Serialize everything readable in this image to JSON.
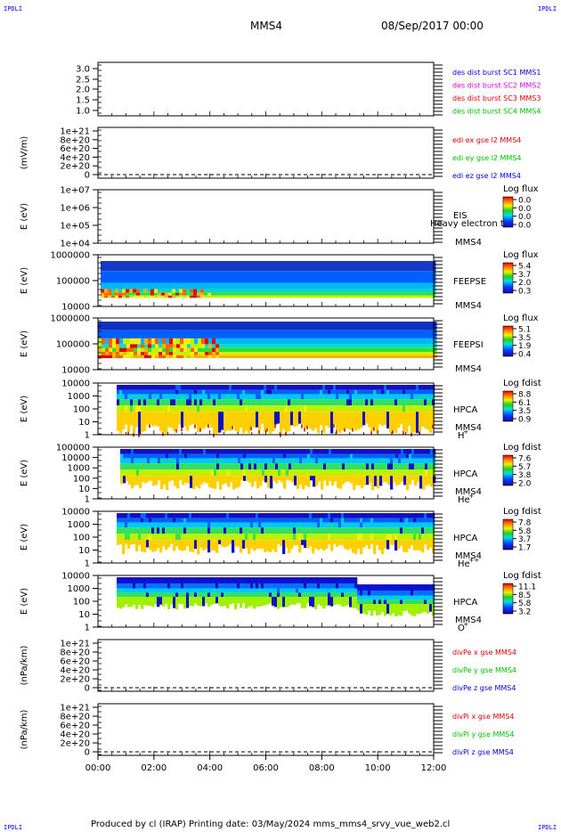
{
  "header": {
    "corner_tl": "IPDLI",
    "corner_tr": "IPDLI",
    "corner_bl": "IPDLI",
    "corner_br": "IPDLI",
    "spacecraft": "MMS4",
    "datetime": "08/Sep/2017 00:00"
  },
  "footer": {
    "text": "Produced by cl (IRAP)   Printing date: 03/May/2024   mms_mms4_srvy_vue_web2.cl"
  },
  "x_ticks": [
    "00:00",
    "02:00",
    "04:00",
    "06:00",
    "08:00",
    "10:00",
    "12:00"
  ],
  "colors": {
    "red": "#e00000",
    "magenta": "#e000e0",
    "green": "#00c000",
    "blue": "#0000e0"
  },
  "chart_data": [
    {
      "type": "line",
      "panel": "desdist",
      "ylim": [
        0.8,
        3.2
      ],
      "yticks": [
        "3.0",
        "2.5",
        "2.0",
        "1.5",
        "1.0"
      ],
      "ylabel": "",
      "legend": [
        {
          "name": "des dist burst SC1 MMS1",
          "color": "blue"
        },
        {
          "name": "des dist burst SC2 MMS2",
          "color": "magenta"
        },
        {
          "name": "des dist burst SC3 MMS3",
          "color": "red"
        },
        {
          "name": "des dist burst SC4 MMS4",
          "color": "green"
        }
      ]
    },
    {
      "type": "line",
      "panel": "edi",
      "ylim": [
        -0.1,
        1.1
      ],
      "yticks": [
        "1e+21",
        "8e+20",
        "6e+20",
        "4e+20",
        "2e+20",
        "0"
      ],
      "ylabel": "(mV/m)",
      "legend": [
        {
          "name": "edi ex gse l2 MMS4",
          "color": "red"
        },
        {
          "name": "edi ey gse l2 MMS4",
          "color": "green"
        },
        {
          "name": "edi ez gse l2 MMS4",
          "color": "blue"
        }
      ]
    },
    {
      "type": "heatmap",
      "panel": "eis",
      "ylabel": "E (eV)",
      "yticks": [
        "1e+07",
        "1e+06",
        "1e+05",
        "1e+04"
      ],
      "labels": [
        "EIS",
        "MMS4"
      ],
      "overlay": "Heavy electron to",
      "cbar": {
        "title": "Log flux",
        "ticks": [
          "0.0",
          "0.0",
          "0.0",
          "0.0"
        ]
      }
    },
    {
      "type": "heatmap",
      "panel": "feepse",
      "ylabel": "E (eV)",
      "yticks": [
        "1000000",
        "100000",
        "10000"
      ],
      "labels": [
        "FEEPSE",
        "MMS4"
      ],
      "cbar": {
        "title": "Log flux",
        "ticks": [
          "5.4",
          "3.7",
          "2.0",
          "0.3"
        ]
      }
    },
    {
      "type": "heatmap",
      "panel": "feepsi",
      "ylabel": "E (eV)",
      "yticks": [
        "1000000",
        "100000",
        "10000"
      ],
      "labels": [
        "FEEPSI",
        "MMS4"
      ],
      "cbar": {
        "title": "Log flux",
        "ticks": [
          "5.1",
          "3.5",
          "1.9",
          "0.4"
        ]
      }
    },
    {
      "type": "heatmap",
      "panel": "hpca_h",
      "ylabel": "E (eV)",
      "yticks": [
        "10000",
        "1000",
        "100",
        "10",
        "1"
      ],
      "labels": [
        "HPCA",
        "MMS4"
      ],
      "species": "H",
      "charge": "+",
      "cbar": {
        "title": "Log fdist",
        "ticks": [
          "8.8",
          "6.1",
          "3.5",
          "0.9"
        ]
      }
    },
    {
      "type": "heatmap",
      "panel": "hpca_he",
      "ylabel": "E (eV)",
      "yticks": [
        "100000",
        "10000",
        "1000",
        "100",
        "10",
        "1"
      ],
      "labels": [
        "HPCA",
        "MMS4"
      ],
      "species": "He",
      "charge": "+",
      "cbar": {
        "title": "Log fdist",
        "ticks": [
          "7.6",
          "5.7",
          "3.8",
          "2.0"
        ]
      }
    },
    {
      "type": "heatmap",
      "panel": "hpca_hepp",
      "ylabel": "E (eV)",
      "yticks": [
        "10000",
        "1000",
        "100",
        "10",
        "1"
      ],
      "labels": [
        "HPCA",
        "MMS4"
      ],
      "species": "He",
      "charge": "++",
      "cbar": {
        "title": "Log fdist",
        "ticks": [
          "7.8",
          "5.8",
          "3.7",
          "1.7"
        ]
      }
    },
    {
      "type": "heatmap",
      "panel": "hpca_o",
      "ylabel": "E (eV)",
      "yticks": [
        "10000",
        "1000",
        "100",
        "10",
        "1"
      ],
      "labels": [
        "HPCA",
        "MMS4"
      ],
      "species": "O",
      "charge": "+",
      "cbar": {
        "title": "Log fdist",
        "ticks": [
          "11.1",
          "8.5",
          "5.8",
          "3.2"
        ]
      }
    },
    {
      "type": "line",
      "panel": "divpe",
      "ylim": [
        -0.1,
        1.1
      ],
      "yticks": [
        "1e+21",
        "8e+20",
        "6e+20",
        "4e+20",
        "2e+20",
        "0"
      ],
      "ylabel": "(nPa/km)",
      "legend": [
        {
          "name": "divPe x gse MMS4",
          "color": "red"
        },
        {
          "name": "divPe y gse MMS4",
          "color": "green"
        },
        {
          "name": "divPe z gse MMS4",
          "color": "blue"
        }
      ]
    },
    {
      "type": "line",
      "panel": "divpi",
      "ylim": [
        -0.1,
        1.1
      ],
      "yticks": [
        "1e+21",
        "8e+20",
        "6e+20",
        "4e+20",
        "2e+20",
        "0"
      ],
      "ylabel": "(nPa/km)",
      "legend": [
        {
          "name": "divPi x gse MMS4",
          "color": "red"
        },
        {
          "name": "divPi y gse MMS4",
          "color": "green"
        },
        {
          "name": "divPi z gse MMS4",
          "color": "blue"
        }
      ]
    }
  ]
}
